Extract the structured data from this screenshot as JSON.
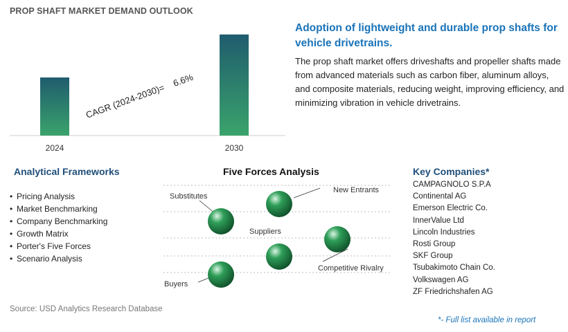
{
  "title": "PROP SHAFT MARKET DEMAND OUTLOOK",
  "chart_data": {
    "type": "bar",
    "categories": [
      "2024",
      "2030"
    ],
    "values": [
      0.5,
      0.87
    ],
    "annotation": "CAGR (2024-2030)=    6.6%",
    "ylim": [
      0,
      1
    ],
    "grid": false,
    "colors": {
      "bar_top": "#1f5c6e",
      "bar_bottom": "#3aa36b"
    }
  },
  "headline": "Adoption of lightweight and durable prop shafts for vehicle drivetrains.",
  "description": "The prop shaft market offers driveshafts and propeller shafts made from advanced materials such as carbon fiber, aluminum alloys, and composite materials, reducing weight, improving efficiency, and minimizing vibration in vehicle drivetrains.",
  "frameworks": {
    "title": "Analytical Frameworks",
    "items": [
      "Pricing Analysis",
      "Market Benchmarking",
      "Company Benchmarking",
      "Growth Matrix",
      "Porter's Five Forces",
      "Scenario Analysis"
    ]
  },
  "five_forces": {
    "title": "Five Forces Analysis",
    "forces": [
      "Substitutes",
      "New Entrants",
      "Suppliers",
      "Competitive Rivalry",
      "Buyers"
    ],
    "sphere_color": "#2e9e58"
  },
  "companies": {
    "title": "Key Companies*",
    "items": [
      "CAMPAGNOLO S.P.A",
      "Continental AG",
      "Emerson Electric Co.",
      "InnerValue Ltd",
      "Lincoln Industries",
      "Rosti Group",
      "SKF Group",
      "Tsubakimoto Chain Co.",
      "Volkswagen AG",
      "ZF Friedrichshafen AG"
    ]
  },
  "source": "Source: USD Analytics Research Database",
  "footnote": "*- Full list available in report"
}
